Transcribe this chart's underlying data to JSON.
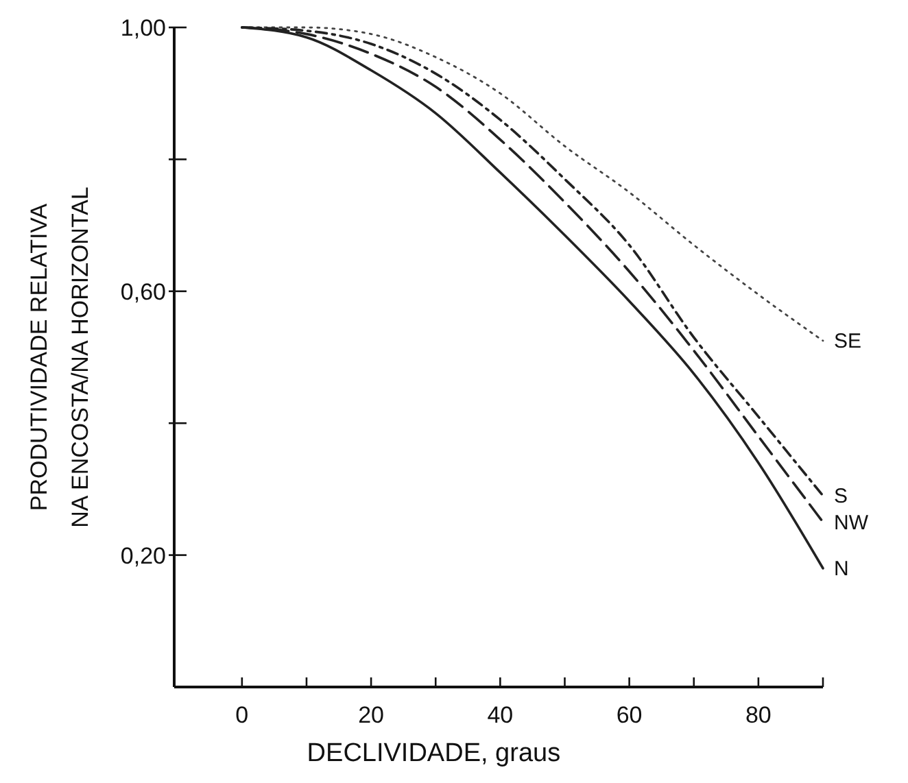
{
  "chart_data": {
    "type": "line",
    "xlabel": "DECLIVIDADE, graus",
    "ylabel": "PRODUTIVIDADE RELATIVA\nNA ENCOSTA/NA HORIZONTAL",
    "x": [
      0,
      10,
      20,
      30,
      40,
      50,
      60,
      70,
      80,
      90
    ],
    "xlim": [
      -10.5,
      90
    ],
    "xticks": [
      0,
      {
        "value": 10,
        "label": null
      },
      20,
      {
        "value": 30,
        "label": null
      },
      40,
      {
        "value": 50,
        "label": null
      },
      60,
      {
        "value": 70,
        "label": null
      },
      80,
      {
        "value": 90,
        "label": null
      }
    ],
    "ylim": [
      0,
      1
    ],
    "yticks": [
      {
        "value": 0.2,
        "label": "0,20"
      },
      {
        "value": 0.4,
        "label": null
      },
      {
        "value": 0.6,
        "label": "0,60"
      },
      {
        "value": 0.8,
        "label": null
      },
      {
        "value": 1,
        "label": "1,00"
      }
    ],
    "grid": false,
    "marker": "none",
    "series": [
      {
        "name": "SE",
        "color": "#444444",
        "line_style": "dotted",
        "values": [
          1,
          1,
          0.99,
          0.955,
          0.9,
          0.82,
          0.75,
          0.67,
          0.595,
          0.525
        ]
      },
      {
        "name": "S",
        "color": "#222222",
        "line_style": "dashdot",
        "values": [
          1,
          0.995,
          0.975,
          0.93,
          0.86,
          0.77,
          0.67,
          0.53,
          0.41,
          0.29
        ]
      },
      {
        "name": "NW",
        "color": "#222222",
        "line_style": "dashed",
        "values": [
          1,
          0.99,
          0.96,
          0.91,
          0.83,
          0.735,
          0.63,
          0.51,
          0.38,
          0.25
        ]
      },
      {
        "name": "N",
        "color": "#222222",
        "line_style": "solid",
        "values": [
          1,
          0.985,
          0.935,
          0.87,
          0.78,
          0.685,
          0.585,
          0.475,
          0.34,
          0.18
        ]
      }
    ]
  }
}
